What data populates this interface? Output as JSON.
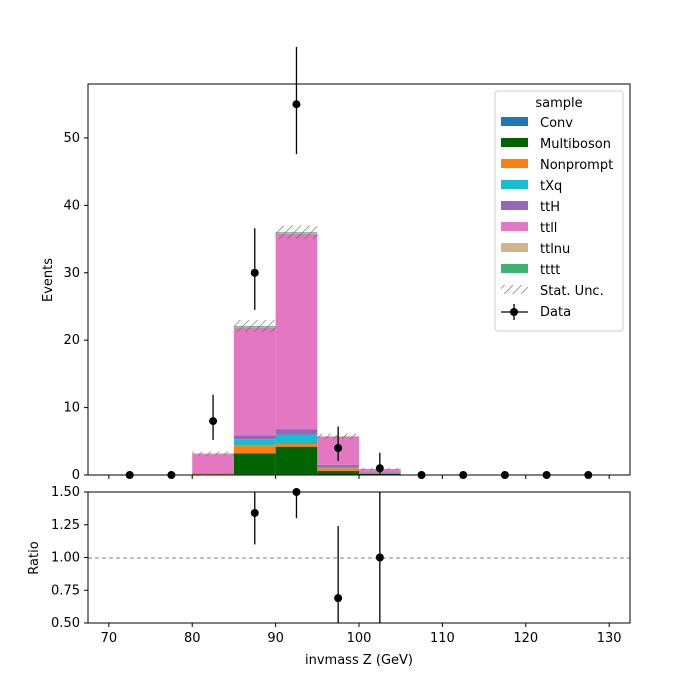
{
  "chart_data": [
    {
      "type": "bar",
      "stacked": true,
      "xlabel": "",
      "ylabel": "Events",
      "xlim": [
        67.5,
        132.5
      ],
      "ylim": [
        0,
        58
      ],
      "y_ticks": [
        0,
        10,
        20,
        30,
        40,
        50
      ],
      "bin_edges": [
        70,
        75,
        80,
        85,
        90,
        95,
        100,
        105,
        110,
        115,
        120,
        125,
        130
      ],
      "series": [
        {
          "name": "Conv",
          "color": "#1f77b4",
          "values": [
            0,
            0,
            0,
            0.1,
            0.1,
            0,
            0,
            0,
            0,
            0,
            0,
            0
          ]
        },
        {
          "name": "Multiboson",
          "color": "#006400",
          "values": [
            0,
            0,
            0.1,
            3.1,
            4.1,
            0.6,
            0.2,
            0,
            0,
            0,
            0,
            0
          ]
        },
        {
          "name": "Nonprompt",
          "color": "#ff7f0e",
          "values": [
            0,
            0,
            0.05,
            1.2,
            0.4,
            0.4,
            0.1,
            0,
            0,
            0,
            0,
            0
          ]
        },
        {
          "name": "tXq",
          "color": "#17becf",
          "values": [
            0,
            0,
            0.05,
            0.9,
            1.4,
            0.2,
            0,
            0,
            0,
            0,
            0,
            0
          ]
        },
        {
          "name": "ttH",
          "color": "#9467bd",
          "values": [
            0,
            0,
            0.1,
            0.6,
            0.8,
            0.3,
            0.1,
            0,
            0,
            0,
            0,
            0
          ]
        },
        {
          "name": "ttll",
          "color": "#e377c2",
          "values": [
            0,
            0,
            2.8,
            16.0,
            29.0,
            4.2,
            0.5,
            0,
            0,
            0,
            0,
            0
          ]
        },
        {
          "name": "ttlnu",
          "color": "#d2b48c",
          "values": [
            0,
            0,
            0.05,
            0.1,
            0.1,
            0.05,
            0,
            0,
            0,
            0,
            0,
            0
          ]
        },
        {
          "name": "tttt",
          "color": "#3cb371",
          "values": [
            0,
            0,
            0.05,
            0.1,
            0.1,
            0,
            0,
            0,
            0,
            0,
            0,
            0
          ]
        }
      ],
      "stat_unc": {
        "name": "Stat. Unc.",
        "half_width": [
          0,
          0,
          0.3,
          0.9,
          1.0,
          0.4,
          0.15,
          0,
          0,
          0,
          0,
          0
        ]
      },
      "data": {
        "name": "Data",
        "x": [
          72.5,
          77.5,
          82.5,
          87.5,
          92.5,
          97.5,
          102.5,
          107.5,
          112.5,
          117.5,
          122.5,
          127.5
        ],
        "y": [
          0,
          0,
          8,
          30,
          55,
          4,
          1,
          0,
          0,
          0,
          0,
          0
        ],
        "err_low": [
          0,
          0,
          2.8,
          5.5,
          7.4,
          1.9,
          0.8,
          0,
          0,
          0,
          0,
          0
        ],
        "err_high": [
          0,
          0,
          3.9,
          6.6,
          8.5,
          3.2,
          2.3,
          0,
          0,
          0,
          0,
          0
        ]
      },
      "legend": {
        "title": "sample",
        "position": "top-right"
      }
    },
    {
      "type": "scatter",
      "xlabel": "invmass Z (GeV)",
      "ylabel": "Ratio",
      "xlim": [
        67.5,
        132.5
      ],
      "ylim": [
        0.5,
        1.5
      ],
      "x_ticks": [
        70,
        80,
        90,
        100,
        110,
        120,
        130
      ],
      "y_ticks": [
        "0.50",
        "0.75",
        "1.00",
        "1.25",
        "1.50"
      ],
      "reference_line": 1.0,
      "x": [
        87.5,
        92.5,
        97.5,
        102.5
      ],
      "y": [
        1.34,
        1.5,
        0.69,
        1.0
      ],
      "err_low": [
        0.24,
        0.2,
        0.33,
        0.8
      ],
      "err_high": [
        0.25,
        0.2,
        0.55,
        1.3
      ]
    }
  ]
}
